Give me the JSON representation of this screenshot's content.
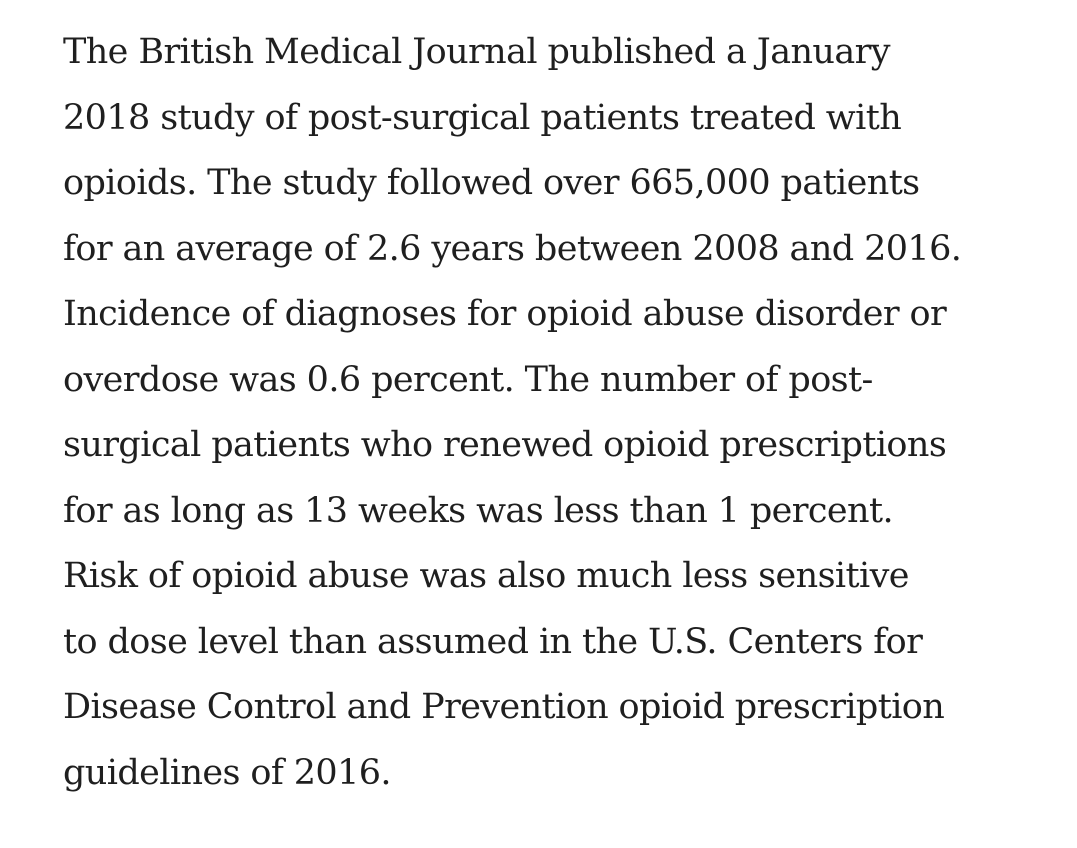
{
  "article": {
    "lines": [
      "The British Medical Journal published a January",
      "2018 study of post-surgical patients treated with",
      "opioids. The study followed over 665,000 patients",
      "for an average of 2.6 years between 2008 and 2016.",
      "Incidence of diagnoses for opioid abuse disorder or",
      "overdose was 0.6 percent. The number of post-",
      "surgical patients who renewed opioid prescriptions",
      "for as long as 13 weeks was less than 1 percent.",
      "Risk of opioid abuse was also much less sensitive",
      "to dose level than assumed in the U.S. Centers for",
      "Disease Control and Prevention opioid prescription",
      "guidelines of 2016."
    ]
  }
}
